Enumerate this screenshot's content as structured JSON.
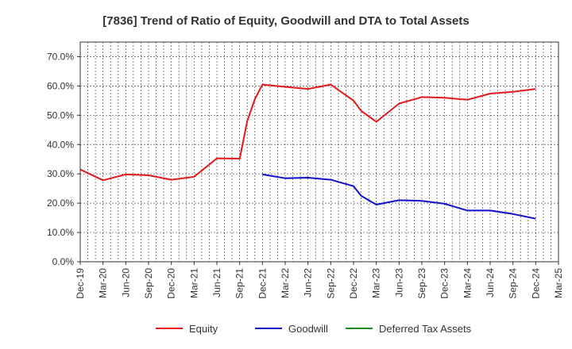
{
  "chart_data": {
    "type": "line",
    "title": "[7836]  Trend of Ratio of Equity, Goodwill and DTA to Total Assets",
    "xlabel": "",
    "ylabel": "",
    "ylim": [
      0,
      75
    ],
    "y_ticks": [
      0,
      10,
      20,
      30,
      40,
      50,
      60,
      70
    ],
    "y_tick_labels": [
      "0.0%",
      "10.0%",
      "20.0%",
      "30.0%",
      "40.0%",
      "50.0%",
      "60.0%",
      "70.0%"
    ],
    "x_tick_labels": [
      "Dec-19",
      "Mar-20",
      "Jun-20",
      "Sep-20",
      "Dec-20",
      "Mar-21",
      "Jun-21",
      "Sep-21",
      "Dec-21",
      "Mar-22",
      "Jun-22",
      "Sep-22",
      "Dec-22",
      "Mar-23",
      "Jun-23",
      "Sep-23",
      "Dec-23",
      "Mar-24",
      "Jun-24",
      "Sep-24",
      "Dec-24",
      "Mar-25"
    ],
    "x_domain": [
      "2019-12",
      "2025-03"
    ],
    "grid": true,
    "legend_position": "bottom",
    "series": [
      {
        "name": "Equity",
        "color": "#e31a1c",
        "points": [
          [
            "2019-12",
            31.5
          ],
          [
            "2020-03",
            27.8
          ],
          [
            "2020-06",
            29.8
          ],
          [
            "2020-09",
            29.5
          ],
          [
            "2020-12",
            28.0
          ],
          [
            "2021-03",
            29.0
          ],
          [
            "2021-06",
            35.3
          ],
          [
            "2021-09",
            35.2
          ],
          [
            "2021-10",
            48.0
          ],
          [
            "2021-11",
            55.5
          ],
          [
            "2021-12",
            60.5
          ],
          [
            "2022-03",
            59.7
          ],
          [
            "2022-06",
            59.0
          ],
          [
            "2022-09",
            60.5
          ],
          [
            "2022-12",
            55.0
          ],
          [
            "2023-01",
            51.5
          ],
          [
            "2023-03",
            47.8
          ],
          [
            "2023-06",
            54.0
          ],
          [
            "2023-09",
            56.2
          ],
          [
            "2023-12",
            56.0
          ],
          [
            "2024-03",
            55.3
          ],
          [
            "2024-06",
            57.4
          ],
          [
            "2024-09",
            58.0
          ],
          [
            "2024-12",
            59.0
          ]
        ]
      },
      {
        "name": "Goodwill",
        "color": "#1010cc",
        "points": [
          [
            "2021-12",
            29.8
          ],
          [
            "2022-03",
            28.5
          ],
          [
            "2022-06",
            28.7
          ],
          [
            "2022-09",
            28.0
          ],
          [
            "2022-12",
            25.8
          ],
          [
            "2023-01",
            22.5
          ],
          [
            "2023-03",
            19.5
          ],
          [
            "2023-06",
            21.0
          ],
          [
            "2023-09",
            20.8
          ],
          [
            "2023-12",
            19.8
          ],
          [
            "2024-03",
            17.5
          ],
          [
            "2024-06",
            17.5
          ],
          [
            "2024-09",
            16.3
          ],
          [
            "2024-12",
            14.7
          ]
        ]
      },
      {
        "name": "Deferred Tax Assets",
        "color": "#1a8a1a",
        "points": []
      }
    ]
  }
}
